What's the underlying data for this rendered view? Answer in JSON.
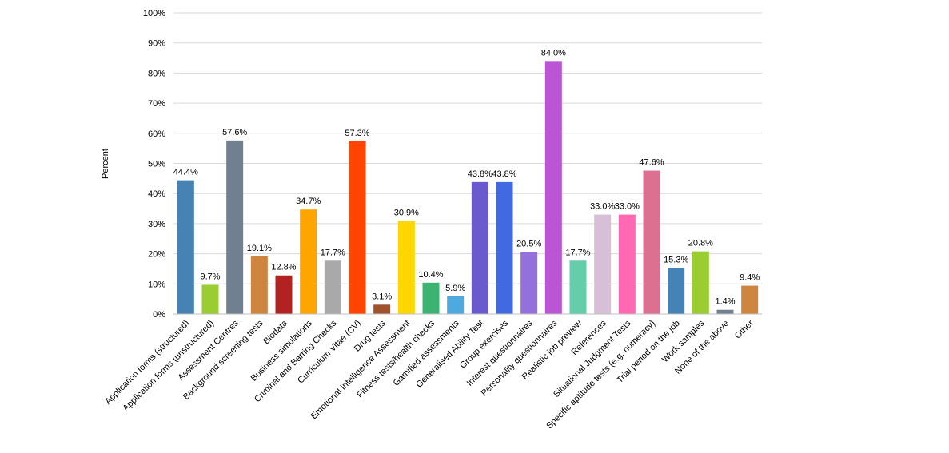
{
  "chart_data": {
    "type": "bar",
    "title": "",
    "xlabel": "",
    "ylabel": "Percent",
    "ylim": [
      0,
      100
    ],
    "yticks": [
      0,
      10,
      20,
      30,
      40,
      50,
      60,
      70,
      80,
      90,
      100
    ],
    "ytick_labels": [
      "0%",
      "10%",
      "20%",
      "30%",
      "40%",
      "50%",
      "60%",
      "70%",
      "80%",
      "90%",
      "100%"
    ],
    "grid": true,
    "legend": "none",
    "categories": [
      "Application forms (structured)",
      "Application forms (unstructured)",
      "Assessment Centres",
      "Background screening tests",
      "Biodata",
      "Business simulations",
      "Criminal and Barring Checks",
      "Curriculum Vitae (CV)",
      "Drug tests",
      "Emotional Intelligence Assessment",
      "Fitness tests/health checks",
      "Gamified assessments",
      "Generalised Ability Test",
      "Group exercises",
      "Interest questionnaires",
      "Personality questionnaires",
      "Realistic job preview",
      "References",
      "Situational Judgment Tests",
      "Specific aptitude tests (e.g. numeracy)",
      "Trial period on the job",
      "Work samples",
      "None of the above",
      "Other"
    ],
    "values": [
      44.4,
      9.7,
      57.6,
      19.1,
      12.8,
      34.7,
      17.7,
      57.3,
      3.1,
      30.9,
      10.4,
      5.9,
      43.8,
      43.8,
      20.5,
      84.0,
      17.7,
      33.0,
      33.0,
      47.6,
      15.3,
      20.8,
      1.4,
      9.4
    ],
    "data_labels": [
      "44.4%",
      "9.7%",
      "57.6%",
      "19.1%",
      "12.8%",
      "34.7%",
      "17.7%",
      "57.3%",
      "3.1%",
      "30.9%",
      "10.4%",
      "5.9%",
      "43.8%",
      "43.8%",
      "20.5%",
      "84.0%",
      "17.7%",
      "33.0%",
      "33.0%",
      "47.6%",
      "15.3%",
      "20.8%",
      "1.4%",
      "9.4%"
    ],
    "colors": [
      "#4682B4",
      "#9ACD32",
      "#708090",
      "#CD853F",
      "#B22222",
      "#FFA500",
      "#A9A9A9",
      "#FF4500",
      "#A0522D",
      "#FFD700",
      "#3CB371",
      "#4EA9E0",
      "#6A5ACD",
      "#4169E1",
      "#9370DB",
      "#BA55D3",
      "#66CDAA",
      "#D8BFD8",
      "#FF69B4",
      "#DB7093",
      "#4682B4",
      "#9ACD32",
      "#708090",
      "#CD853F"
    ],
    "grid_color": "#d9d9d9",
    "axis_color": "#bfbfbf"
  }
}
